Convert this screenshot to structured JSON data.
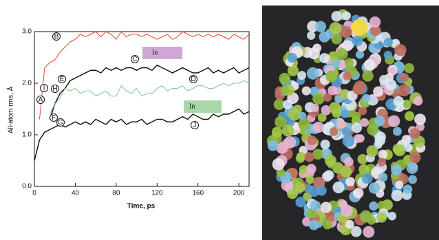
{
  "chart_data": {
    "type": "line",
    "xlabel": "Time, ps",
    "ylabel": "All-atom rms, Å",
    "x": [
      0,
      5,
      10,
      15,
      20,
      25,
      30,
      35,
      40,
      45,
      50,
      55,
      60,
      65,
      70,
      75,
      80,
      85,
      90,
      95,
      100,
      105,
      110,
      115,
      120,
      125,
      130,
      135,
      140,
      145,
      150,
      155,
      160,
      165,
      170,
      175,
      180,
      185,
      190,
      195,
      200,
      205,
      210
    ],
    "series": [
      {
        "color": "#e8462a",
        "values": [
          null,
          1.3,
          2.3,
          2.4,
          2.45,
          2.6,
          2.7,
          2.8,
          2.85,
          2.95,
          2.9,
          2.95,
          3.0,
          2.9,
          3.0,
          2.95,
          2.85,
          3.0,
          2.9,
          2.95,
          2.95,
          2.9,
          2.95,
          2.9,
          2.85,
          2.9,
          2.95,
          2.85,
          2.9,
          3.0,
          2.95,
          2.9,
          2.95,
          2.9,
          2.95,
          2.9,
          2.95,
          2.9,
          2.85,
          2.95,
          2.9,
          2.85,
          2.95
        ]
      },
      {
        "color": "#111111",
        "values": [
          null,
          null,
          null,
          1.3,
          1.6,
          1.8,
          1.9,
          2.05,
          2.1,
          2.15,
          2.2,
          2.25,
          2.25,
          2.2,
          2.3,
          2.25,
          2.3,
          2.25,
          2.3,
          2.3,
          2.25,
          2.3,
          2.3,
          2.25,
          2.35,
          2.3,
          2.25,
          2.2,
          2.25,
          2.3,
          2.25,
          2.2,
          2.2,
          2.25,
          2.3,
          2.2,
          2.25,
          2.2,
          2.25,
          2.3,
          2.2,
          2.25,
          2.3
        ]
      },
      {
        "color": "#7fc98a",
        "values": [
          null,
          null,
          null,
          1.4,
          1.6,
          1.7,
          1.9,
          1.85,
          1.9,
          1.8,
          1.85,
          1.85,
          1.75,
          1.8,
          1.85,
          1.75,
          1.75,
          1.95,
          1.85,
          1.8,
          1.9,
          1.75,
          1.8,
          1.8,
          1.9,
          1.95,
          1.85,
          1.9,
          1.9,
          1.95,
          1.85,
          1.9,
          1.95,
          1.95,
          1.9,
          1.9,
          1.95,
          2.0,
          1.95,
          2.0,
          2.0,
          2.05,
          2.0
        ]
      },
      {
        "color": "#111111",
        "values": [
          0.5,
          0.9,
          1.05,
          1.1,
          1.15,
          1.2,
          1.15,
          1.2,
          1.25,
          1.2,
          1.25,
          1.2,
          1.3,
          1.25,
          1.2,
          1.3,
          1.25,
          1.3,
          1.2,
          1.25,
          1.25,
          1.3,
          1.2,
          1.25,
          1.3,
          1.3,
          1.25,
          1.25,
          1.3,
          1.35,
          1.3,
          1.4,
          1.35,
          1.3,
          1.3,
          1.4,
          1.35,
          1.4,
          1.4,
          1.45,
          1.5,
          1.4,
          1.45
        ]
      }
    ],
    "xlim": [
      0,
      210
    ],
    "xticks": [
      0,
      40,
      80,
      120,
      160,
      200
    ],
    "ylim": [
      0,
      3
    ],
    "yticks": [
      {
        "value": 0,
        "label": "0.0"
      },
      {
        "value": 1,
        "label": "1.0"
      },
      {
        "value": 2,
        "label": "2.0"
      },
      {
        "value": 3,
        "label": "3.0"
      }
    ],
    "annotations": [
      "A",
      "B",
      "C",
      "D",
      "E",
      "F",
      "G",
      "H",
      "I",
      "J",
      "In",
      "In"
    ]
  }
}
